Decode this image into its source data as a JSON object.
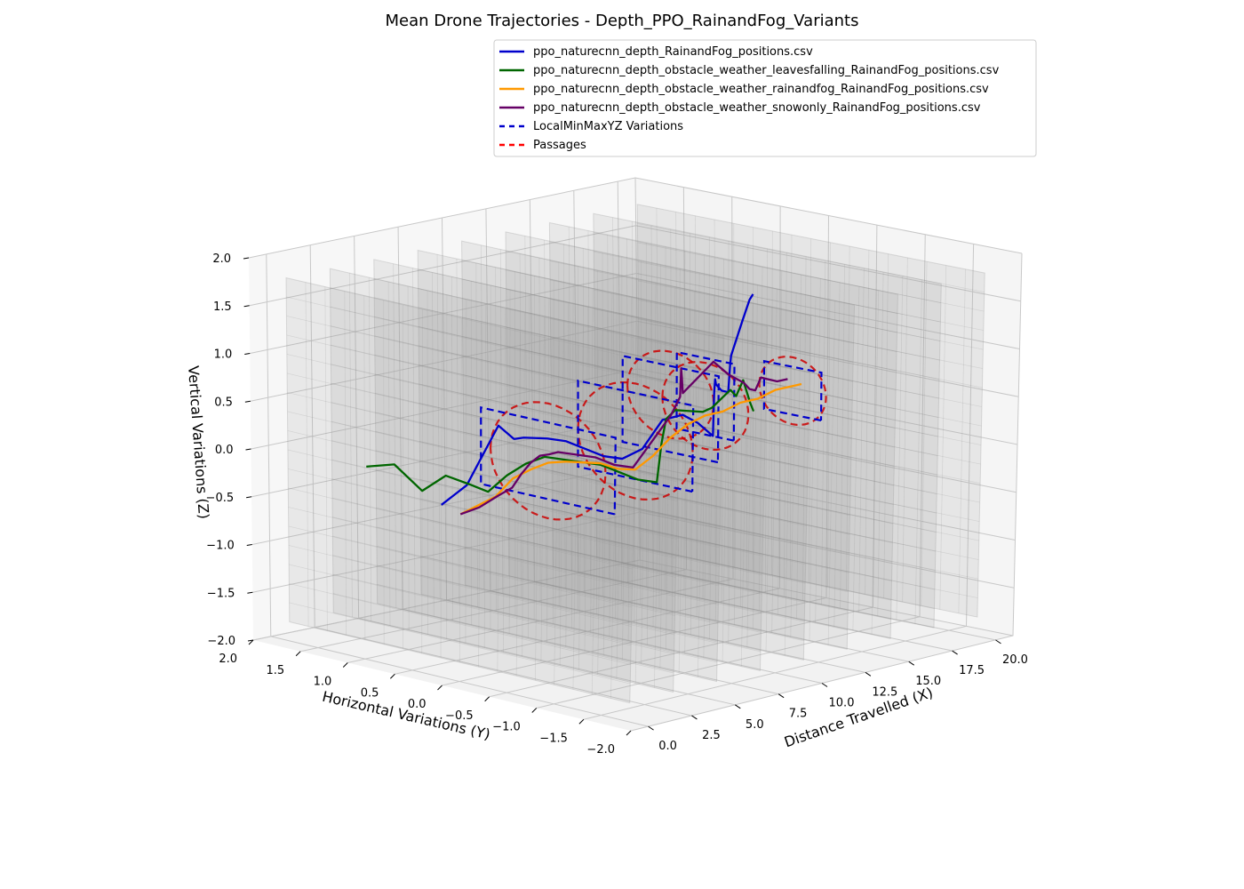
{
  "chart_data": {
    "type": "line",
    "projection": "3d",
    "title": "Mean Drone Trajectories - Depth_PPO_RainandFog_Variants",
    "xlabel": "Distance Travelled (X)",
    "ylabel": "Horizontal Variations (Y)",
    "zlabel": "Vertical Variations (Z)",
    "xlim": [
      -1,
      21
    ],
    "ylim": [
      -2,
      2
    ],
    "zlim": [
      -2,
      2
    ],
    "x_ticks": [
      "0.0",
      "2.5",
      "5.0",
      "7.5",
      "10.0",
      "12.5",
      "15.0",
      "17.5",
      "20.0"
    ],
    "y_ticks": [
      "2.0",
      "1.5",
      "1.0",
      "0.5",
      "0.0",
      "−0.5",
      "−1.0",
      "−1.5",
      "−2.0"
    ],
    "z_ticks": [
      "2.0",
      "1.5",
      "1.0",
      "0.5",
      "0.0",
      "−0.5",
      "−1.0",
      "−1.5",
      "−2.0"
    ],
    "grid": true,
    "legend_position": "top-right",
    "series": [
      {
        "name": "ppo_naturecnn_depth_RainandFog_positions.csv",
        "color": "#0000cc",
        "style": "solid",
        "x": [
          0,
          1,
          2,
          3,
          3.8,
          4.4,
          5,
          5.8,
          6.6,
          7.4,
          8.2,
          9.0,
          9.8,
          10.4,
          11.0,
          11.6,
          12.2,
          12.8,
          13.4,
          14.0,
          14.6,
          15.2,
          15.8,
          16.4,
          17.0,
          17.6,
          18.2,
          18.8,
          19.4,
          19.8,
          20.0
        ],
        "y": [
          0.2,
          0.25,
          0.3,
          0.35,
          0.3,
          0.25,
          0.35,
          0.4,
          0.3,
          0.25,
          0.2,
          0.15,
          0.1,
          0.0,
          -0.1,
          -0.2,
          -0.25,
          -0.3,
          -0.2,
          -0.1,
          0.0,
          0.05,
          0.1,
          0.2,
          0.3,
          0.4,
          0.5,
          0.55,
          0.6,
          0.6,
          0.6
        ],
        "z": [
          -0.2,
          -0.15,
          -0.1,
          0.1,
          0.45,
          0.3,
          0.25,
          0.22,
          0.2,
          0.15,
          0.05,
          -0.05,
          -0.1,
          0.0,
          0.3,
          0.35,
          0.25,
          0.1,
          0.5,
          0.6,
          0.5,
          0.4,
          0.35,
          0.3,
          0.4,
          0.5,
          0.55,
          0.7,
          0.85,
          1.05,
          1.1
        ]
      },
      {
        "name": "ppo_naturecnn_depth_obstacle_weather_leavesfalling_RainandFog_positions.csv",
        "color": "#006600",
        "style": "solid",
        "x": [
          -1,
          -0.5,
          0,
          0.8,
          1.6,
          2.4,
          3.2,
          4.0,
          4.8,
          5.6,
          6.4,
          7.2,
          8.0,
          8.8,
          9.6,
          10.4,
          11.2,
          12.0,
          12.8,
          13.6,
          14.4,
          15.2,
          16.0,
          16.8,
          17.4,
          17.8,
          18.2,
          18.4
        ],
        "y": [
          0.8,
          0.6,
          0.4,
          0.3,
          0.2,
          0.15,
          0.1,
          0.05,
          0.0,
          -0.05,
          -0.1,
          -0.15,
          -0.2,
          -0.25,
          -0.3,
          -0.2,
          -0.1,
          -0.05,
          0.0,
          0.05,
          0.1,
          0.15,
          0.2,
          0.25,
          0.3,
          0.3,
          0.3,
          0.3
        ],
        "z": [
          0.1,
          0.15,
          -0.1,
          0.05,
          -0.05,
          -0.15,
          0.0,
          0.1,
          0.15,
          0.1,
          0.05,
          0.0,
          -0.1,
          -0.2,
          -0.25,
          0.1,
          0.3,
          0.35,
          0.3,
          0.25,
          0.2,
          0.2,
          0.25,
          0.3,
          0.2,
          0.35,
          0.1,
          0.0
        ]
      },
      {
        "name": "ppo_naturecnn_depth_obstacle_weather_rainandfog_RainandFog_positions.csv",
        "color": "#ff9900",
        "style": "solid",
        "x": [
          0,
          1,
          2,
          3,
          4,
          5,
          6,
          7,
          8,
          9,
          10,
          11,
          12,
          13,
          14,
          15,
          16,
          17,
          18,
          19,
          19.5
        ],
        "y": [
          0.0,
          0.0,
          0.0,
          0.0,
          0.0,
          0.0,
          0.0,
          0.0,
          0.0,
          0.0,
          0.0,
          0.0,
          0.0,
          0.0,
          0.0,
          0.0,
          0.0,
          0.0,
          0.0,
          0.0,
          0.0
        ],
        "z": [
          -0.25,
          -0.2,
          -0.15,
          0.0,
          0.05,
          0.08,
          0.05,
          0.0,
          -0.05,
          -0.15,
          -0.2,
          -0.1,
          0.05,
          0.15,
          0.2,
          0.2,
          0.25,
          0.25,
          0.3,
          0.3,
          0.3
        ]
      },
      {
        "name": "ppo_naturecnn_depth_obstacle_weather_snowonly_RainandFog_positions.csv",
        "color": "#660066",
        "style": "solid",
        "x": [
          0,
          0.8,
          1.6,
          2.4,
          3.2,
          4.0,
          4.8,
          5.6,
          6.4,
          7.2,
          8.0,
          8.8,
          9.6,
          10.4,
          11.2,
          12.0,
          12.6,
          13.2,
          13.8,
          14.4,
          15.0,
          15.6,
          16.2,
          16.8,
          17.4,
          18.0,
          18.6,
          19.2,
          19.6,
          19.8
        ],
        "y": [
          0.0,
          -0.05,
          -0.1,
          -0.1,
          -0.05,
          0.0,
          0.05,
          0.1,
          0.15,
          0.1,
          0.05,
          0.0,
          -0.05,
          -0.1,
          -0.15,
          -0.1,
          0.0,
          0.1,
          0.2,
          0.15,
          0.1,
          0.05,
          0.0,
          0.05,
          0.1,
          0.15,
          0.2,
          0.2,
          0.2,
          0.2
        ],
        "z": [
          -0.25,
          -0.2,
          -0.1,
          -0.05,
          0.05,
          0.12,
          0.15,
          0.12,
          0.1,
          0.05,
          0.0,
          -0.1,
          -0.15,
          0.1,
          0.35,
          0.5,
          0.75,
          0.6,
          0.4,
          0.55,
          0.7,
          0.55,
          0.45,
          0.35,
          0.3,
          0.4,
          0.35,
          0.3,
          0.3,
          0.3
        ]
      }
    ],
    "local_minmax_yz_variations": {
      "name": "LocalMinMaxYZ Variations",
      "color": "#0000cc",
      "style": "dashed",
      "boxes": [
        {
          "x": 5,
          "y": [
            -0.7,
            0.7
          ],
          "z": [
            -0.3,
            0.5
          ]
        },
        {
          "x": 10,
          "y": [
            -0.6,
            0.6
          ],
          "z": [
            -0.3,
            0.6
          ]
        },
        {
          "x": 12,
          "y": [
            -0.5,
            0.5
          ],
          "z": [
            -0.1,
            0.8
          ]
        },
        {
          "x": 14,
          "y": [
            -0.3,
            0.3
          ],
          "z": [
            0.0,
            0.8
          ]
        },
        {
          "x": 19,
          "y": [
            -0.3,
            0.3
          ],
          "z": [
            0.0,
            0.5
          ]
        }
      ]
    },
    "passages": {
      "name": "Passages",
      "color": "#ff0000",
      "style": "dashed",
      "circles": [
        {
          "x": 5,
          "y": 0.0,
          "z": 0.1,
          "r": 0.6
        },
        {
          "x": 10,
          "y": 0.0,
          "z": 0.1,
          "r": 0.6
        },
        {
          "x": 12,
          "y": 0.0,
          "z": 0.5,
          "r": 0.45
        },
        {
          "x": 14,
          "y": 0.0,
          "z": 0.3,
          "r": 0.45
        },
        {
          "x": 19,
          "y": 0.0,
          "z": 0.25,
          "r": 0.35
        }
      ]
    },
    "obstacle_walls_x": [
      0,
      2.5,
      5,
      7.5,
      10,
      12.5,
      15,
      17.5,
      20
    ]
  }
}
